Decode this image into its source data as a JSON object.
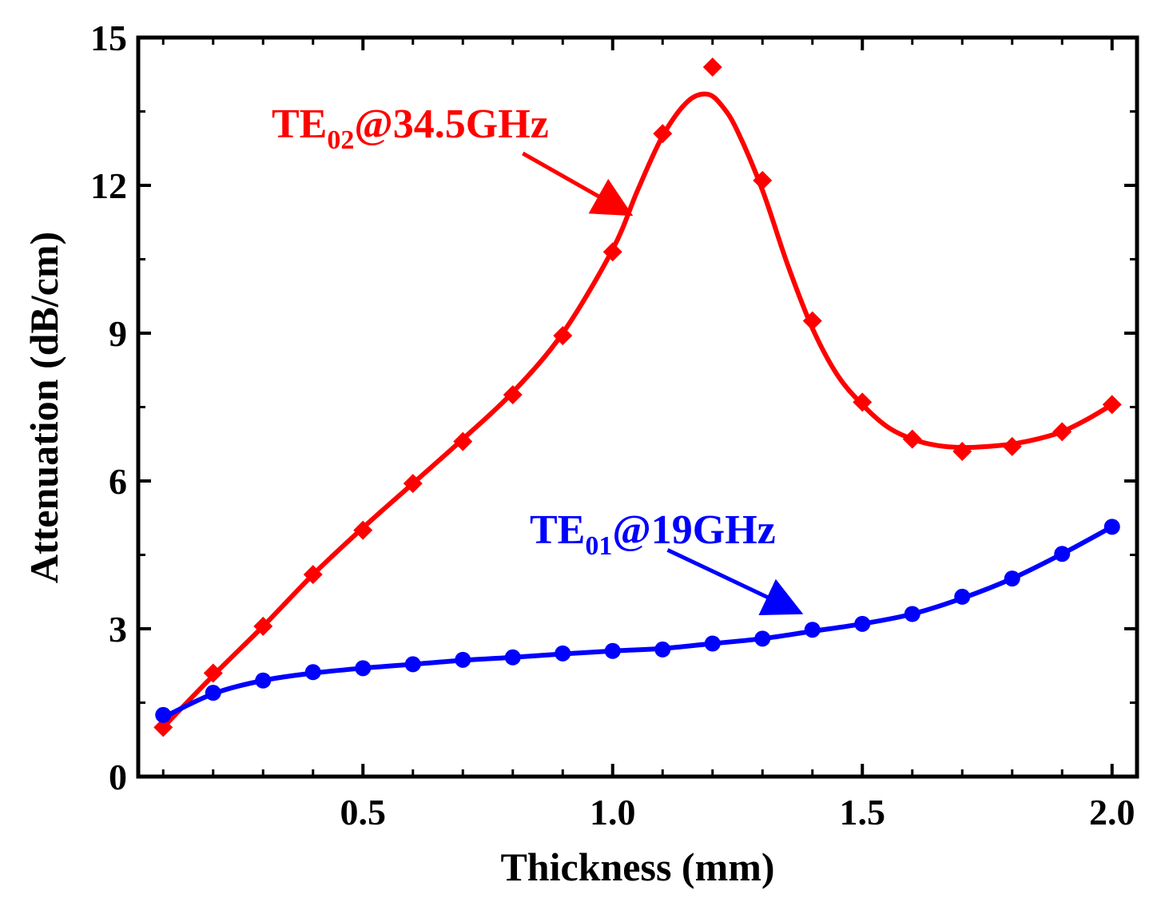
{
  "chart_data": {
    "type": "line",
    "title": "",
    "xlabel": "Thickness (mm)",
    "ylabel": "Attenuation (dB/cm)",
    "xlim": [
      0.05,
      2.05
    ],
    "ylim": [
      0,
      15
    ],
    "xticks": [
      0.5,
      1.0,
      1.5,
      2.0
    ],
    "xtick_labels": [
      "0.5",
      "1.0",
      "1.5",
      "2.0"
    ],
    "yticks": [
      0,
      3,
      6,
      9,
      12,
      15
    ],
    "ytick_labels": [
      "0",
      "3",
      "6",
      "9",
      "12",
      "15"
    ],
    "x": [
      0.1,
      0.2,
      0.3,
      0.4,
      0.5,
      0.6,
      0.7,
      0.8,
      0.9,
      1.0,
      1.1,
      1.2,
      1.3,
      1.4,
      1.5,
      1.6,
      1.7,
      1.8,
      1.9,
      2.0
    ],
    "series": [
      {
        "name": "TE02@34.5GHz",
        "label_main": "TE",
        "label_sub": "02",
        "label_rest": "@34.5GHz",
        "color": "#ff0000",
        "marker": "diamond",
        "values": [
          1.0,
          2.1,
          3.05,
          4.1,
          5.0,
          5.95,
          6.8,
          7.75,
          8.95,
          10.65,
          13.05,
          14.4,
          12.1,
          9.25,
          7.6,
          6.85,
          6.6,
          6.7,
          7.0,
          7.55
        ],
        "fit_x": [
          0.1,
          0.2,
          0.3,
          0.4,
          0.5,
          0.6,
          0.7,
          0.8,
          0.9,
          1.0,
          1.05,
          1.1,
          1.15,
          1.19,
          1.22,
          1.25,
          1.3,
          1.35,
          1.4,
          1.45,
          1.5,
          1.55,
          1.6,
          1.65,
          1.7,
          1.75,
          1.8,
          1.85,
          1.9,
          1.95,
          2.0
        ],
        "fit_y": [
          1.0,
          2.05,
          3.05,
          4.1,
          5.05,
          5.95,
          6.85,
          7.8,
          9.0,
          10.7,
          11.9,
          13.0,
          13.7,
          13.85,
          13.6,
          13.1,
          11.9,
          10.4,
          9.1,
          8.15,
          7.55,
          7.1,
          6.85,
          6.72,
          6.68,
          6.7,
          6.75,
          6.85,
          7.0,
          7.25,
          7.55
        ]
      },
      {
        "name": "TE01@19GHz",
        "label_main": "TE",
        "label_sub": "01",
        "label_rest": "@19GHz",
        "color": "#0000ff",
        "marker": "circle",
        "values": [
          1.25,
          1.7,
          1.95,
          2.12,
          2.2,
          2.28,
          2.37,
          2.42,
          2.5,
          2.55,
          2.58,
          2.7,
          2.8,
          2.98,
          3.1,
          3.3,
          3.65,
          4.02,
          4.52,
          5.07
        ],
        "fit_x": [
          0.1,
          0.2,
          0.3,
          0.4,
          0.5,
          0.6,
          0.7,
          0.8,
          0.9,
          1.0,
          1.1,
          1.2,
          1.3,
          1.4,
          1.5,
          1.6,
          1.7,
          1.8,
          1.9,
          2.0
        ],
        "fit_y": [
          1.2,
          1.68,
          1.95,
          2.1,
          2.2,
          2.28,
          2.36,
          2.42,
          2.49,
          2.55,
          2.6,
          2.7,
          2.8,
          2.95,
          3.1,
          3.3,
          3.62,
          4.02,
          4.52,
          5.07
        ]
      }
    ],
    "annotations": [
      {
        "series": "TE02@34.5GHz",
        "arrow_from": [
          0.82,
          12.65
        ],
        "arrow_to": [
          1.02,
          11.5
        ]
      },
      {
        "series": "TE01@19GHz",
        "arrow_from": [
          1.11,
          4.6
        ],
        "arrow_to": [
          1.36,
          3.4
        ]
      }
    ]
  }
}
